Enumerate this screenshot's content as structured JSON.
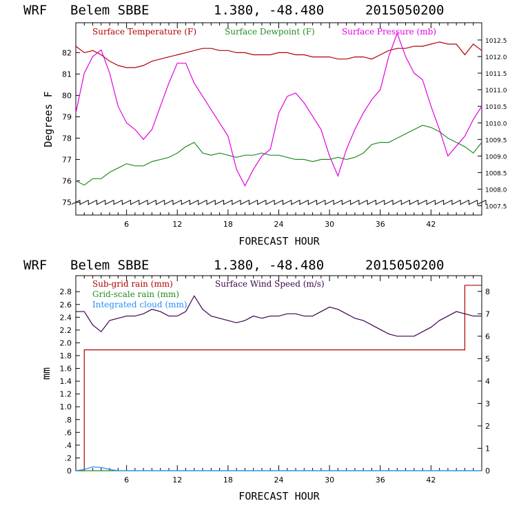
{
  "charts": [
    {
      "header": {
        "model": "WRF",
        "station": "Belem SBBE",
        "coords": "1.380, -48.480",
        "init": "2015050200"
      },
      "xlabel": "FORECAST HOUR",
      "ylabel": "Degrees F",
      "x_ticks": [
        "6",
        "12",
        "18",
        "24",
        "30",
        "36",
        "42"
      ],
      "y_ticks_left": [
        "75",
        "76",
        "77",
        "78",
        "79",
        "80",
        "81",
        "82"
      ],
      "y_ticks_right": [
        "1007.5",
        "1008.0",
        "1008.5",
        "1009.0",
        "1009.5",
        "1010.0",
        "1010.5",
        "1011.0",
        "1011.5",
        "1012.0",
        "1012.5"
      ],
      "legend": [
        {
          "label": "Surface Temperature (F)",
          "color": "#b00000"
        },
        {
          "label": "Surface Dewpoint (F)",
          "color": "#228b22"
        },
        {
          "label": "Surface Pressure (mb)",
          "color": "#e000e0"
        }
      ]
    },
    {
      "header": {
        "model": "WRF",
        "station": "Belem SBBE",
        "coords": "1.380, -48.480",
        "init": "2015050200"
      },
      "xlabel": "FORECAST HOUR",
      "ylabel": "mm",
      "x_ticks": [
        "6",
        "12",
        "18",
        "24",
        "30",
        "36",
        "42"
      ],
      "y_ticks_left": [
        "0",
        ".2",
        ".4",
        ".6",
        ".8",
        "1.0",
        "1.2",
        "1.4",
        "1.6",
        "1.8",
        "2.0",
        "2.2",
        "2.4",
        "2.6",
        "2.8"
      ],
      "y_ticks_right": [
        "0",
        "1",
        "2",
        "3",
        "4",
        "5",
        "6",
        "7",
        "8"
      ],
      "legend": [
        {
          "label": "Sub-grid rain (mm)",
          "color": "#b00000"
        },
        {
          "label": "Surface Wind Speed (m/s)",
          "color": "#3a0050"
        },
        {
          "label": "Grid-scale rain (mm)",
          "color": "#228b22"
        },
        {
          "label": "Integrated cloud (mm)",
          "color": "#1e90ff"
        }
      ]
    }
  ],
  "chart_data": [
    {
      "type": "line",
      "title": "WRF Belem SBBE 1.380, -48.480 2015050200",
      "xlabel": "FORECAST HOUR",
      "ylabel": "Degrees F",
      "xlim": [
        0,
        48
      ],
      "ylim": [
        74.4,
        83.4
      ],
      "y2lim": [
        1007.22,
        1013.02
      ],
      "x": [
        0,
        1,
        2,
        3,
        4,
        5,
        6,
        7,
        8,
        9,
        10,
        11,
        12,
        13,
        14,
        15,
        16,
        17,
        18,
        19,
        20,
        21,
        22,
        23,
        24,
        25,
        26,
        27,
        28,
        29,
        30,
        31,
        32,
        33,
        34,
        35,
        36,
        37,
        38,
        39,
        40,
        41,
        42,
        43,
        44,
        45,
        46,
        47,
        48
      ],
      "series": [
        {
          "name": "Surface Temperature (F)",
          "axis": "left",
          "color": "#b00000",
          "values": [
            82.3,
            82.0,
            82.1,
            81.9,
            81.6,
            81.4,
            81.3,
            81.3,
            81.4,
            81.6,
            81.7,
            81.8,
            81.9,
            82.0,
            82.1,
            82.2,
            82.2,
            82.1,
            82.1,
            82.0,
            82.0,
            81.9,
            81.9,
            81.9,
            82.0,
            82.0,
            81.9,
            81.9,
            81.8,
            81.8,
            81.8,
            81.7,
            81.7,
            81.8,
            81.8,
            81.7,
            81.9,
            82.1,
            82.2,
            82.2,
            82.3,
            82.3,
            82.4,
            82.5,
            82.4,
            82.4,
            81.9,
            82.4,
            82.1
          ]
        },
        {
          "name": "Surface Dewpoint (F)",
          "axis": "left",
          "color": "#228b22",
          "values": [
            76.0,
            75.8,
            76.1,
            76.1,
            76.4,
            76.6,
            76.8,
            76.7,
            76.7,
            76.9,
            77.0,
            77.1,
            77.3,
            77.6,
            77.8,
            77.3,
            77.2,
            77.3,
            77.2,
            77.1,
            77.2,
            77.2,
            77.3,
            77.2,
            77.2,
            77.1,
            77.0,
            77.0,
            76.9,
            77.0,
            77.0,
            77.1,
            77.0,
            77.1,
            77.3,
            77.7,
            77.8,
            77.8,
            78.0,
            78.2,
            78.4,
            78.6,
            78.5,
            78.3,
            78.0,
            77.8,
            77.6,
            77.3,
            77.8
          ]
        },
        {
          "name": "Surface Pressure (mb)",
          "axis": "right",
          "color": "#e000e0",
          "values": [
            1010.3,
            1011.5,
            1012.0,
            1012.2,
            1011.5,
            1010.5,
            1010.0,
            1009.8,
            1009.5,
            1009.8,
            1010.5,
            1011.2,
            1011.8,
            1011.8,
            1011.2,
            1010.8,
            1010.4,
            1010.0,
            1009.6,
            1008.6,
            1008.1,
            1008.6,
            1009.0,
            1009.2,
            1010.3,
            1010.8,
            1010.9,
            1010.6,
            1010.2,
            1009.8,
            1009.0,
            1008.4,
            1009.2,
            1009.8,
            1010.3,
            1010.7,
            1011.0,
            1012.0,
            1012.7,
            1012.0,
            1011.5,
            1011.3,
            1010.5,
            1009.8,
            1009.0,
            1009.3,
            1009.6,
            1010.1,
            1010.5
          ]
        },
        {
          "name": "Wind barbs",
          "axis": "left",
          "color": "#000000",
          "values": [
            75.0,
            75.0,
            75.0,
            75.0,
            75.0,
            75.0,
            75.0,
            75.0,
            75.0,
            75.0,
            75.0,
            75.0,
            75.0,
            75.0,
            75.0,
            75.0,
            75.0,
            75.0,
            75.0,
            75.0,
            75.0,
            75.0,
            75.0,
            75.0,
            75.0,
            75.0,
            75.0,
            75.0,
            75.0,
            75.0,
            75.0,
            75.0,
            75.0,
            75.0,
            75.0,
            75.0,
            75.0,
            75.0,
            75.0,
            75.0,
            75.0,
            75.0,
            75.0,
            75.0,
            75.0,
            75.0,
            75.0,
            75.0,
            75.0
          ]
        }
      ]
    },
    {
      "type": "line",
      "title": "WRF Belem SBBE 1.380, -48.480 2015050200",
      "xlabel": "FORECAST HOUR",
      "ylabel": "mm",
      "xlim": [
        0,
        48
      ],
      "ylim": [
        0,
        3.05
      ],
      "y2lim": [
        0,
        8.7
      ],
      "x": [
        0,
        1,
        2,
        3,
        4,
        5,
        6,
        7,
        8,
        9,
        10,
        11,
        12,
        13,
        14,
        15,
        16,
        17,
        18,
        19,
        20,
        21,
        22,
        23,
        24,
        25,
        26,
        27,
        28,
        29,
        30,
        31,
        32,
        33,
        34,
        35,
        36,
        37,
        38,
        39,
        40,
        41,
        42,
        43,
        44,
        45,
        46,
        47,
        48
      ],
      "series": [
        {
          "name": "Sub-grid rain (mm)",
          "axis": "left",
          "color": "#b00000",
          "values": [
            0,
            1.89,
            1.89,
            1.89,
            1.89,
            1.89,
            1.89,
            1.89,
            1.89,
            1.89,
            1.89,
            1.89,
            1.89,
            1.89,
            1.89,
            1.89,
            1.89,
            1.89,
            1.89,
            1.89,
            1.89,
            1.89,
            1.89,
            1.89,
            1.89,
            1.89,
            1.89,
            1.89,
            1.89,
            1.89,
            1.89,
            1.89,
            1.89,
            1.89,
            1.89,
            1.89,
            1.89,
            1.89,
            1.89,
            1.89,
            1.89,
            1.89,
            1.89,
            1.89,
            1.89,
            1.89,
            2.9,
            2.9,
            2.9
          ]
        },
        {
          "name": "Surface Wind Speed (m/s)",
          "axis": "right",
          "color": "#3a0050",
          "values": [
            7.1,
            7.1,
            6.5,
            6.2,
            6.7,
            6.8,
            6.9,
            6.9,
            7.0,
            7.2,
            7.1,
            6.9,
            6.9,
            7.1,
            7.8,
            7.2,
            6.9,
            6.8,
            6.7,
            6.6,
            6.7,
            6.9,
            6.8,
            6.9,
            6.9,
            7.0,
            7.0,
            6.9,
            6.9,
            7.1,
            7.3,
            7.2,
            7.0,
            6.8,
            6.7,
            6.5,
            6.3,
            6.1,
            6.0,
            6.0,
            6.0,
            6.2,
            6.4,
            6.7,
            6.9,
            7.1,
            7.0,
            6.9,
            6.9
          ]
        },
        {
          "name": "Grid-scale rain (mm)",
          "axis": "left",
          "color": "#228b22",
          "values": [
            0,
            0,
            0,
            0,
            0,
            0,
            0,
            0,
            0,
            0,
            0,
            0,
            0,
            0,
            0,
            0,
            0,
            0,
            0,
            0,
            0,
            0,
            0,
            0,
            0,
            0,
            0,
            0,
            0,
            0,
            0,
            0,
            0,
            0,
            0,
            0,
            0,
            0,
            0,
            0,
            0,
            0,
            0,
            0,
            0,
            0,
            0,
            0,
            0
          ]
        },
        {
          "name": "Integrated cloud (mm)",
          "axis": "left",
          "color": "#1e90ff",
          "values": [
            0,
            0.02,
            0.06,
            0.05,
            0.02,
            0,
            0,
            0,
            0,
            0,
            0,
            0,
            0,
            0,
            0,
            0,
            0,
            0,
            0,
            0,
            0,
            0,
            0,
            0,
            0,
            0,
            0,
            0,
            0,
            0,
            0,
            0,
            0,
            0,
            0,
            0,
            0,
            0,
            0,
            0,
            0,
            0,
            0,
            0,
            0,
            0,
            0,
            0,
            0
          ]
        }
      ]
    }
  ]
}
